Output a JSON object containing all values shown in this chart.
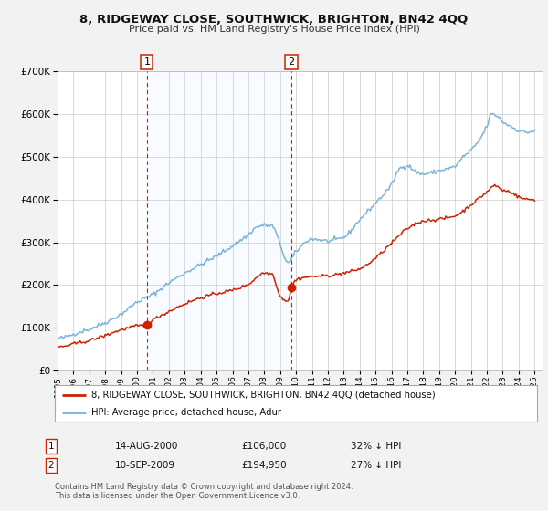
{
  "title": "8, RIDGEWAY CLOSE, SOUTHWICK, BRIGHTON, BN42 4QQ",
  "subtitle": "Price paid vs. HM Land Registry's House Price Index (HPI)",
  "ylim": [
    0,
    700000
  ],
  "yticks": [
    0,
    100000,
    200000,
    300000,
    400000,
    500000,
    600000,
    700000
  ],
  "xlim_start": 1995.0,
  "xlim_end": 2025.5,
  "hpi_color": "#7ab4d8",
  "price_color": "#cc2200",
  "bg_color": "#f2f2f2",
  "plot_bg_color": "#ffffff",
  "shade_color": "#ddeeff",
  "grid_color": "#cccccc",
  "sale1_date": 2000.62,
  "sale1_price": 106000,
  "sale2_date": 2009.71,
  "sale2_price": 194950,
  "legend_property": "8, RIDGEWAY CLOSE, SOUTHWICK, BRIGHTON, BN42 4QQ (detached house)",
  "legend_hpi": "HPI: Average price, detached house, Adur",
  "footer1": "Contains HM Land Registry data © Crown copyright and database right 2024.",
  "footer2": "This data is licensed under the Open Government Licence v3.0.",
  "table_row1_date": "14-AUG-2000",
  "table_row1_price": "£106,000",
  "table_row1_pct": "32% ↓ HPI",
  "table_row2_date": "10-SEP-2009",
  "table_row2_price": "£194,950",
  "table_row2_pct": "27% ↓ HPI"
}
